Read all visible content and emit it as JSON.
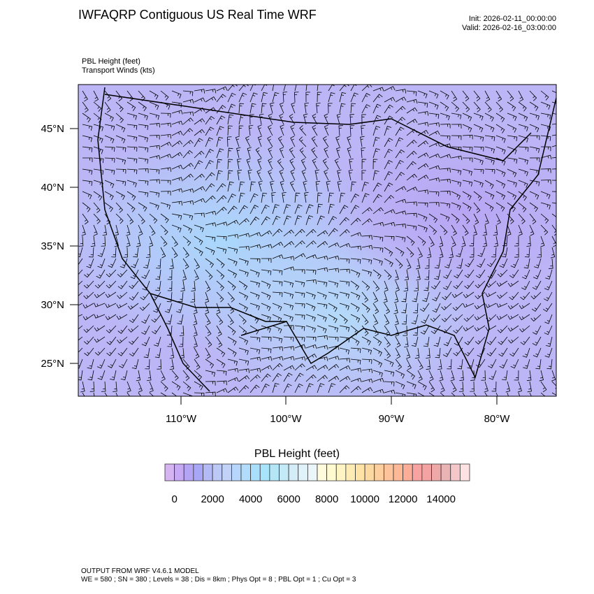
{
  "header": {
    "title": "IWFAQRP Contiguous US Real Time WRF",
    "init": "Init: 2026-02-11_00:00:00",
    "valid": "Valid: 2026-02-16_03:00:00"
  },
  "subtitle": {
    "line1": "PBL Height   (feet)",
    "line2": "Transport Winds   (kts)"
  },
  "footer": {
    "line1": "OUTPUT FROM WRF V4.6.1 MODEL",
    "line2": "WE = 580 ; SN = 380 ; Levels = 38 ; Dis = 8km ; Phys Opt = 8 ; PBL Opt = 1 ; Cu Opt = 3"
  },
  "chart_data": {
    "type": "heatmap",
    "title": "PBL Height (feet)",
    "lat_ticks": [
      "45°N",
      "40°N",
      "35°N",
      "30°N",
      "25°N"
    ],
    "lon_ticks": [
      "110°W",
      "100°W",
      "90°W",
      "80°W"
    ],
    "colorbar": {
      "title": "PBL Height  (feet)",
      "levels_step": 500,
      "labels": [
        "0",
        "2000",
        "4000",
        "6000",
        "8000",
        "10000",
        "12000",
        "14000"
      ],
      "colors": [
        "#d6b4f2",
        "#c6a8f4",
        "#b4a4f6",
        "#a8a6f6",
        "#b4baf6",
        "#bcc8f6",
        "#c2d2f8",
        "#b6d6fc",
        "#b2dcfc",
        "#aadffc",
        "#a8e4fc",
        "#b4e6f8",
        "#c4eaf8",
        "#d4ecf8",
        "#e0f2fa",
        "#eaf6fa",
        "#fffbdc",
        "#fffad0",
        "#fff4c4",
        "#ffecb4",
        "#fde3a6",
        "#fdd9a2",
        "#fdcf9e",
        "#fdc39a",
        "#fdb898",
        "#fbad98",
        "#f8a2a2",
        "#f4a2a2",
        "#eea8a8",
        "#eab4b4",
        "#f4c8c8",
        "#fce2e2"
      ]
    },
    "map_dominant_range_feet": [
      0,
      4000
    ],
    "grid": false
  }
}
